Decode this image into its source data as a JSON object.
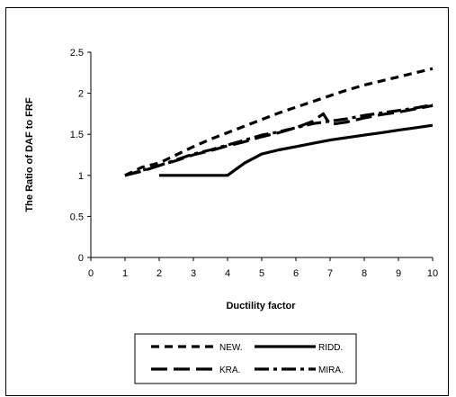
{
  "chart_data": {
    "type": "line",
    "xlabel": "Ductility factor",
    "ylabel": "The Ratio of DAF to FRF",
    "xlim": [
      0,
      10
    ],
    "ylim": [
      0,
      2.5
    ],
    "xticks": [
      "0",
      "1",
      "2",
      "3",
      "4",
      "5",
      "6",
      "7",
      "8",
      "9",
      "10"
    ],
    "yticks": [
      "0",
      "0.5",
      "1",
      "1.5",
      "2",
      "2.5"
    ],
    "grid": false,
    "legend_position": "bottom",
    "series": [
      {
        "name": "NEW.",
        "style": "short-dash",
        "x": [
          1,
          1.5,
          2,
          2.5,
          3,
          3.5,
          4,
          4.5,
          5,
          5.5,
          6,
          6.5,
          7,
          7.5,
          8,
          8.5,
          9,
          9.5,
          10
        ],
        "y": [
          1.0,
          1.1,
          1.15,
          1.25,
          1.35,
          1.44,
          1.52,
          1.6,
          1.68,
          1.76,
          1.83,
          1.9,
          1.97,
          2.04,
          2.1,
          2.15,
          2.2,
          2.25,
          2.3
        ]
      },
      {
        "name": "RIDD.",
        "style": "solid",
        "x": [
          2,
          2.5,
          3,
          3.5,
          4,
          4.5,
          5,
          5.5,
          6,
          6.5,
          7,
          7.5,
          8,
          8.5,
          9,
          9.5,
          10
        ],
        "y": [
          1.0,
          1.0,
          1.0,
          1.0,
          1.0,
          1.15,
          1.26,
          1.31,
          1.35,
          1.39,
          1.43,
          1.46,
          1.49,
          1.52,
          1.55,
          1.58,
          1.61
        ]
      },
      {
        "name": "KRA.",
        "style": "long-dash",
        "x": [
          1,
          1.5,
          2,
          2.5,
          3,
          3.5,
          4,
          4.5,
          5,
          5.5,
          6,
          6.5,
          6.8,
          7,
          7.5,
          8,
          8.5,
          9,
          9.5,
          10
        ],
        "y": [
          1.0,
          1.05,
          1.12,
          1.18,
          1.25,
          1.3,
          1.36,
          1.41,
          1.47,
          1.52,
          1.58,
          1.66,
          1.75,
          1.62,
          1.65,
          1.7,
          1.74,
          1.77,
          1.81,
          1.85
        ]
      },
      {
        "name": "MIRA.",
        "style": "dash-dot",
        "x": [
          1,
          1.5,
          2,
          2.5,
          3,
          3.5,
          4,
          4.5,
          5,
          5.5,
          6,
          6.5,
          7,
          7.5,
          8,
          8.5,
          9,
          9.5,
          10
        ],
        "y": [
          1.0,
          1.06,
          1.12,
          1.19,
          1.26,
          1.31,
          1.37,
          1.43,
          1.49,
          1.53,
          1.58,
          1.63,
          1.66,
          1.69,
          1.73,
          1.76,
          1.79,
          1.82,
          1.86
        ]
      }
    ]
  }
}
